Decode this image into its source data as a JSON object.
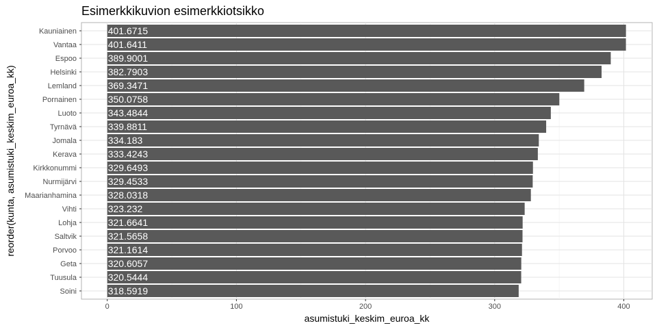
{
  "chart_data": {
    "type": "bar",
    "orientation": "horizontal",
    "title": "Esimerkkikuvion esimerkkiotsikko",
    "xlabel": "asumistuki_keskim_euroa_kk",
    "ylabel": "reorder(kunta, asumistuki_keskim_euroa_kk)",
    "xlim": [
      -20,
      422
    ],
    "xticks": [
      0,
      100,
      200,
      300,
      400
    ],
    "grid": true,
    "bar_color": "#595959",
    "label_color": "#ffffff",
    "categories": [
      "Kauniainen",
      "Vantaa",
      "Espoo",
      "Helsinki",
      "Lemland",
      "Pornainen",
      "Luoto",
      "Tyrnävä",
      "Jomala",
      "Kerava",
      "Kirkkonummi",
      "Nurmijärvi",
      "Maarianhamina",
      "Vihti",
      "Lohja",
      "Saltvik",
      "Porvoo",
      "Geta",
      "Tuusula",
      "Soini"
    ],
    "values": [
      401.6715,
      401.6411,
      389.9001,
      382.7903,
      369.3471,
      350.0758,
      343.4844,
      339.8811,
      334.183,
      333.4243,
      329.6493,
      329.4533,
      328.0318,
      323.232,
      321.6641,
      321.5658,
      321.1614,
      320.6057,
      320.5444,
      318.5919
    ],
    "data_labels": [
      "401.6715",
      "401.6411",
      "389.9001",
      "382.7903",
      "369.3471",
      "350.0758",
      "343.4844",
      "339.8811",
      "334.183",
      "333.4243",
      "329.6493",
      "329.4533",
      "328.0318",
      "323.232",
      "321.6641",
      "321.5658",
      "321.1614",
      "320.6057",
      "320.5444",
      "318.5919"
    ]
  }
}
